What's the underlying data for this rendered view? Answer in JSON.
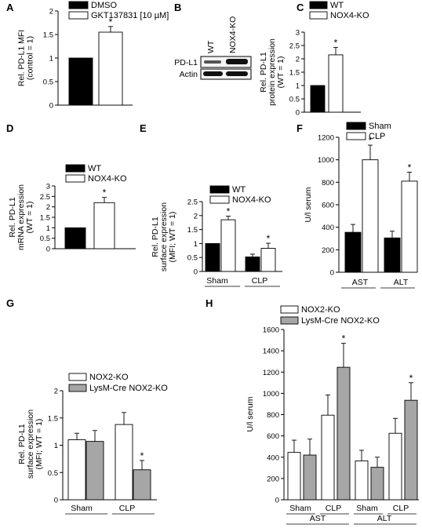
{
  "chart_data": [
    {
      "panel": "A",
      "type": "bar",
      "ylabel": "Rel. PD-L1 MFI (control = 1)",
      "ylabel_lines": [
        "Rel. PD-L1 MFI",
        "(control = 1)"
      ],
      "ylim": [
        0,
        2
      ],
      "yticks": [
        "0",
        "0.5",
        "1",
        "1.5",
        "2"
      ],
      "series": [
        {
          "name": "DMSO",
          "color": "#000000",
          "values": [
            1.0
          ],
          "errors": [
            0
          ]
        },
        {
          "name": "GKT137831 [10 µM]",
          "color": "#ffffff",
          "values": [
            1.55
          ],
          "errors": [
            0.12
          ]
        }
      ],
      "legend": "top-left",
      "annotations": [
        "*"
      ]
    },
    {
      "panel": "B",
      "type": "western-blot",
      "columns": [
        "WT",
        "NOX4-KO"
      ],
      "rows": [
        "PD-L1",
        "Actin"
      ]
    },
    {
      "panel": "C",
      "type": "bar",
      "ylabel": "Rel. PD-L1 protein expression (WT = 1)",
      "ylabel_lines": [
        "Rel. PD-L1",
        "protein expression",
        "(WT = 1)"
      ],
      "ylim": [
        0,
        3
      ],
      "yticks": [
        "0",
        "0.5",
        "1",
        "1.5",
        "2",
        "2.5",
        "3"
      ],
      "series": [
        {
          "name": "WT",
          "color": "#000000",
          "values": [
            1.0
          ],
          "errors": [
            0
          ]
        },
        {
          "name": "NOX4-KO",
          "color": "#ffffff",
          "values": [
            2.15
          ],
          "errors": [
            0.28
          ]
        }
      ],
      "legend": "top-left",
      "annotations": [
        "*"
      ]
    },
    {
      "panel": "D",
      "type": "bar",
      "ylabel": "Rel. PD-L1 mRNA expression (WT = 1)",
      "ylabel_lines": [
        "Rel. PD-L1",
        "mRNA expression",
        "(WT = 1)"
      ],
      "ylim": [
        0,
        3
      ],
      "yticks": [
        "0",
        "0.5",
        "1",
        "1.5",
        "2",
        "2.5",
        "3"
      ],
      "series": [
        {
          "name": "WT",
          "color": "#000000",
          "values": [
            1.0
          ],
          "errors": [
            0
          ]
        },
        {
          "name": "NOX4-KO",
          "color": "#ffffff",
          "values": [
            2.2
          ],
          "errors": [
            0.25
          ]
        }
      ],
      "legend": "top-left",
      "annotations": [
        "*"
      ]
    },
    {
      "panel": "E",
      "type": "bar",
      "ylabel": "Rel. PD-L1 surface expression (MFI; WT = 1)",
      "ylabel_lines": [
        "Rel. PD-L1",
        "surface expression",
        "(MFI; WT = 1)"
      ],
      "ylim": [
        0,
        2.5
      ],
      "yticks": [
        "0",
        "0.5",
        "1",
        "1.5",
        "2",
        "2.5"
      ],
      "categories": [
        "Sham",
        "CLP"
      ],
      "series": [
        {
          "name": "WT",
          "color": "#000000",
          "values": [
            1.0,
            0.52
          ],
          "errors": [
            0,
            0.1
          ]
        },
        {
          "name": "NOX4-KO",
          "color": "#ffffff",
          "values": [
            1.85,
            0.83
          ],
          "errors": [
            0.13,
            0.18
          ]
        }
      ],
      "legend": "top-left",
      "annotations": [
        "*",
        "*"
      ]
    },
    {
      "panel": "F",
      "type": "bar",
      "ylabel": "U/l serum",
      "ylabel_lines": [
        "U/l serum"
      ],
      "ylim": [
        0,
        1200
      ],
      "yticks": [
        "0",
        "200",
        "400",
        "600",
        "800",
        "1000",
        "1200"
      ],
      "categories": [
        "AST",
        "ALT"
      ],
      "series": [
        {
          "name": "Sham",
          "color": "#000000",
          "values": [
            355,
            305
          ],
          "errors": [
            70,
            60
          ]
        },
        {
          "name": "CLP",
          "color": "#ffffff",
          "values": [
            1000,
            810
          ],
          "errors": [
            130,
            80
          ]
        }
      ],
      "legend": "top-left",
      "annotations": [
        "*",
        "*"
      ]
    },
    {
      "panel": "G",
      "type": "bar",
      "ylabel": "Rel. PD-L1 surface expression (MFI; WT = 1)",
      "ylabel_lines": [
        "Rel. PD-L1",
        "surface expression",
        "(MFI; WT = 1)"
      ],
      "ylim": [
        0,
        2
      ],
      "yticks": [
        "0",
        "0.5",
        "1",
        "1.5",
        "2"
      ],
      "categories": [
        "Sham",
        "CLP"
      ],
      "series": [
        {
          "name": "NOX2-KO",
          "color": "#ffffff",
          "values": [
            1.1,
            1.38
          ],
          "errors": [
            0.12,
            0.22
          ]
        },
        {
          "name": "LysM-Cre NOX2-KO",
          "color": "#a6a6a6",
          "values": [
            1.07,
            0.55
          ],
          "errors": [
            0.2,
            0.17
          ]
        }
      ],
      "legend": "top-left",
      "annotations": [
        "*"
      ]
    },
    {
      "panel": "H",
      "type": "bar",
      "ylabel": "U/l serum",
      "ylabel_lines": [
        "U/l serum"
      ],
      "ylim": [
        0,
        1600
      ],
      "yticks": [
        "0",
        "200",
        "400",
        "600",
        "800",
        "1000",
        "1200",
        "1400",
        "1600"
      ],
      "categories": [
        "Sham",
        "CLP",
        "Sham",
        "CLP"
      ],
      "groups": [
        "AST",
        "ALT"
      ],
      "series": [
        {
          "name": "NOX2-KO",
          "color": "#ffffff",
          "values": [
            445,
            795,
            365,
            625
          ],
          "errors": [
            115,
            190,
            100,
            140
          ]
        },
        {
          "name": "LysM-Cre NOX2-KO",
          "color": "#a6a6a6",
          "values": [
            420,
            1245,
            305,
            935
          ],
          "errors": [
            150,
            225,
            95,
            165
          ]
        }
      ],
      "legend": "top-left",
      "annotations": [
        "*",
        "*"
      ]
    }
  ]
}
